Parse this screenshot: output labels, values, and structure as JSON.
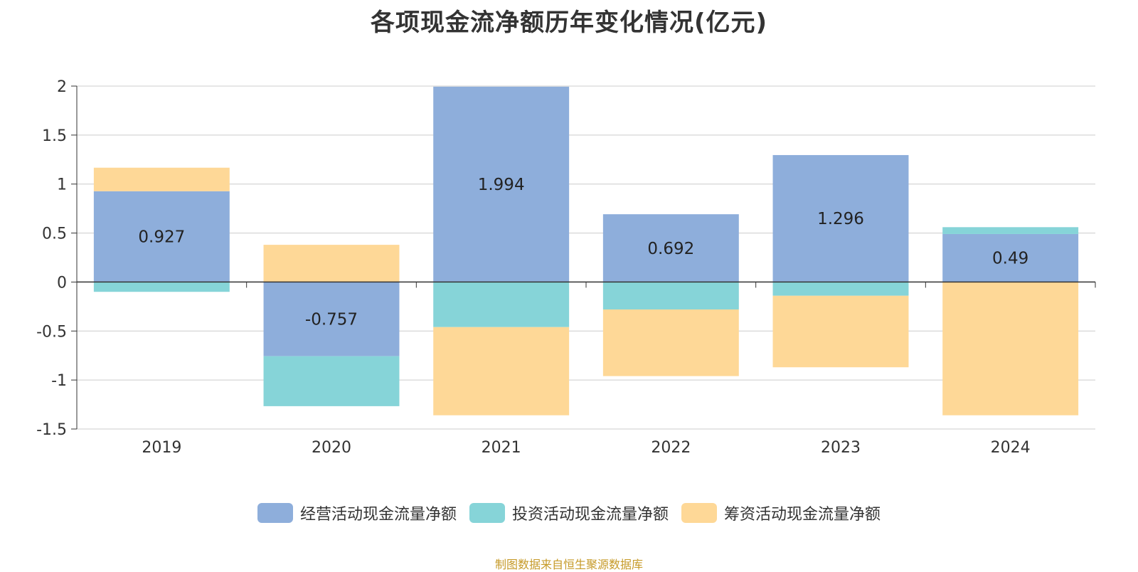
{
  "header": {
    "title": "各项现金流净额历年变化情况(亿元)"
  },
  "footer": {
    "source": "制图数据来自恒生聚源数据库"
  },
  "chart_data": {
    "type": "bar",
    "stacked": true,
    "categories": [
      "2019",
      "2020",
      "2021",
      "2022",
      "2023",
      "2024"
    ],
    "ylim": [
      -1.5,
      2
    ],
    "yticks": [
      "2",
      "1.5",
      "1",
      "0.5",
      "0",
      "-0.5",
      "-1",
      "-1.5"
    ],
    "grid": true,
    "legend_position": "bottom",
    "series": [
      {
        "name": "经营活动现金流量净额",
        "color": "#8eaedb",
        "values": [
          0.927,
          -0.757,
          1.994,
          0.692,
          1.296,
          0.49
        ],
        "labels": [
          "0.927",
          "-0.757",
          "1.994",
          "0.692",
          "1.296",
          "0.49"
        ]
      },
      {
        "name": "投资活动现金流量净额",
        "color": "#86d4d8",
        "values": [
          -0.1,
          -0.51,
          -0.46,
          -0.28,
          -0.14,
          0.07
        ]
      },
      {
        "name": "筹资活动现金流量净额",
        "color": "#fed897",
        "values": [
          0.24,
          0.38,
          -0.9,
          -0.68,
          -0.73,
          -1.36
        ]
      }
    ]
  }
}
